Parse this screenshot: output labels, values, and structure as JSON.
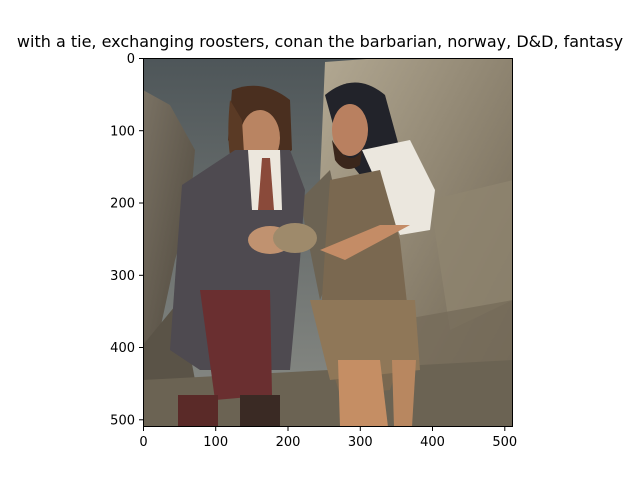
{
  "figure": {
    "title": "with a tie,  exchanging  roosters, conan the barbarian, norway, D&D, fantasy",
    "image": {
      "subject": "two bearded long-haired men on a rocky mountain slope holding an object between them; left in a grey tweed coat with tie and waistcoat, right in fur and leather barbarian garb",
      "palette": {
        "sky": "#5d6467",
        "rock_light": "#a49a86",
        "rock_dark": "#5f584b",
        "coat": "#4e4a4f",
        "shirt": "#e9e4da",
        "fur": "#8a7458",
        "skin": "#c08c66",
        "hair": "#3a2619"
      }
    },
    "x_axis": {
      "ticks": [
        "0",
        "100",
        "200",
        "300",
        "400",
        "500"
      ]
    },
    "y_axis": {
      "ticks": [
        "0",
        "100",
        "200",
        "300",
        "400",
        "500"
      ]
    }
  }
}
